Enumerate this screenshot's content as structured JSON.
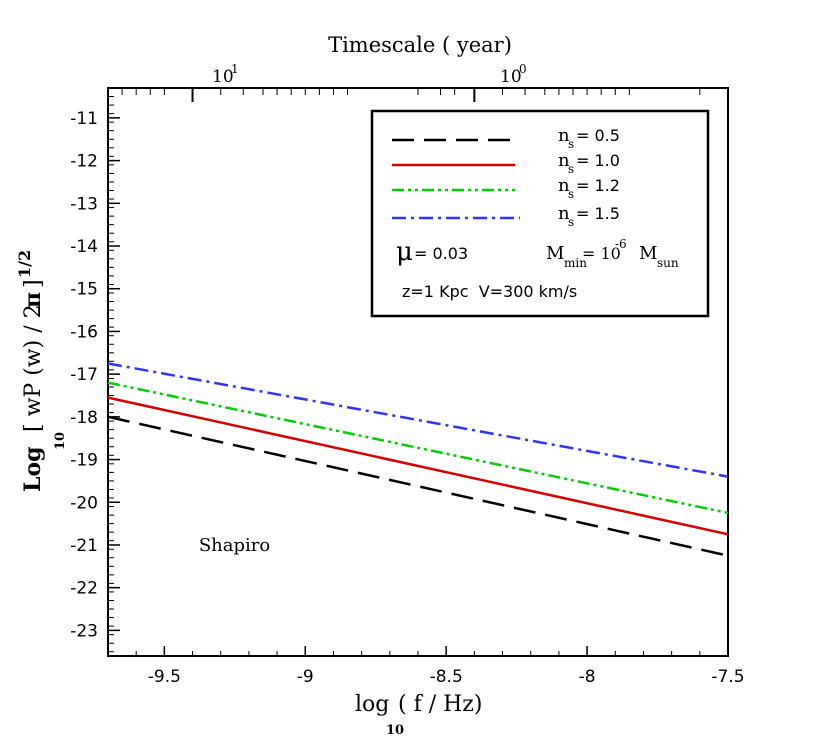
{
  "chart_data": {
    "type": "line",
    "title": "",
    "x_axis": {
      "label": "log",
      "label_subscript": "10",
      "label_rest": "( f / Hz)",
      "range": [
        -9.7,
        -7.5
      ],
      "ticks": [
        -9.5,
        -9,
        -8.5,
        -8,
        -7.5
      ],
      "tick_labels": [
        "-9.5",
        "-9",
        "-8.5",
        "-8",
        "-7.5"
      ]
    },
    "y_axis": {
      "label": "Log",
      "label_subscript": "10",
      "label_mid": "[ wP (w) / 2 ",
      "label_pi": "π",
      "label_close": "]",
      "label_superscript": "1/2",
      "range": [
        -23.6,
        -10.3
      ],
      "ticks": [
        -11,
        -12,
        -13,
        -14,
        -15,
        -16,
        -17,
        -18,
        -19,
        -20,
        -21,
        -22,
        -23
      ],
      "tick_labels": [
        "-11",
        "-12",
        "-13",
        "-14",
        "-15",
        "-16",
        "-17",
        "-18",
        "-19",
        "-20",
        "-21",
        "-22",
        "-23"
      ]
    },
    "top_axis": {
      "label": "Timescale ( year)",
      "ticks": [
        {
          "base": "10",
          "exp": "1",
          "at_log_f": -9.4
        },
        {
          "base": "10",
          "exp": "0",
          "at_log_f": -8.4
        }
      ]
    },
    "series": [
      {
        "name": "n_s = 0.5",
        "sub": "s",
        "value_text": "= 0.5",
        "color": "#000000",
        "dash": "22,10",
        "x": [
          -9.7,
          -7.5
        ],
        "y": [
          -18.0,
          -21.25
        ]
      },
      {
        "name": "n_s = 1.0",
        "sub": "s",
        "value_text": "= 1.0",
        "color": "#d40000",
        "dash": "",
        "x": [
          -9.7,
          -7.5
        ],
        "y": [
          -17.55,
          -20.75
        ]
      },
      {
        "name": "n_s = 1.2",
        "sub": "s",
        "value_text": "= 1.2",
        "color": "#00cc00",
        "dash": "12,4,3,4,3,4",
        "x": [
          -9.7,
          -7.5
        ],
        "y": [
          -17.2,
          -20.25
        ]
      },
      {
        "name": "n_s = 1.5",
        "sub": "s",
        "value_text": "= 1.5",
        "color": "#3333ff",
        "dash": "14,5,3,5",
        "x": [
          -9.7,
          -7.5
        ],
        "y": [
          -16.75,
          -19.4
        ]
      }
    ],
    "legend": {
      "placement": "top-right",
      "n_letter": "n",
      "mu_symbol": "μ",
      "mu_value": "= 0.03",
      "mmin_text": "M",
      "mmin_sub": "min",
      "mmin_eq": "= 10",
      "mmin_exp": "-6",
      "msun_text": "M",
      "msun_sub": "sun",
      "params": "z=1 Kpc  V=300 km/s"
    },
    "annotations": [
      {
        "text": "Shapiro",
        "x": -9.25,
        "y": -21.0
      }
    ]
  }
}
